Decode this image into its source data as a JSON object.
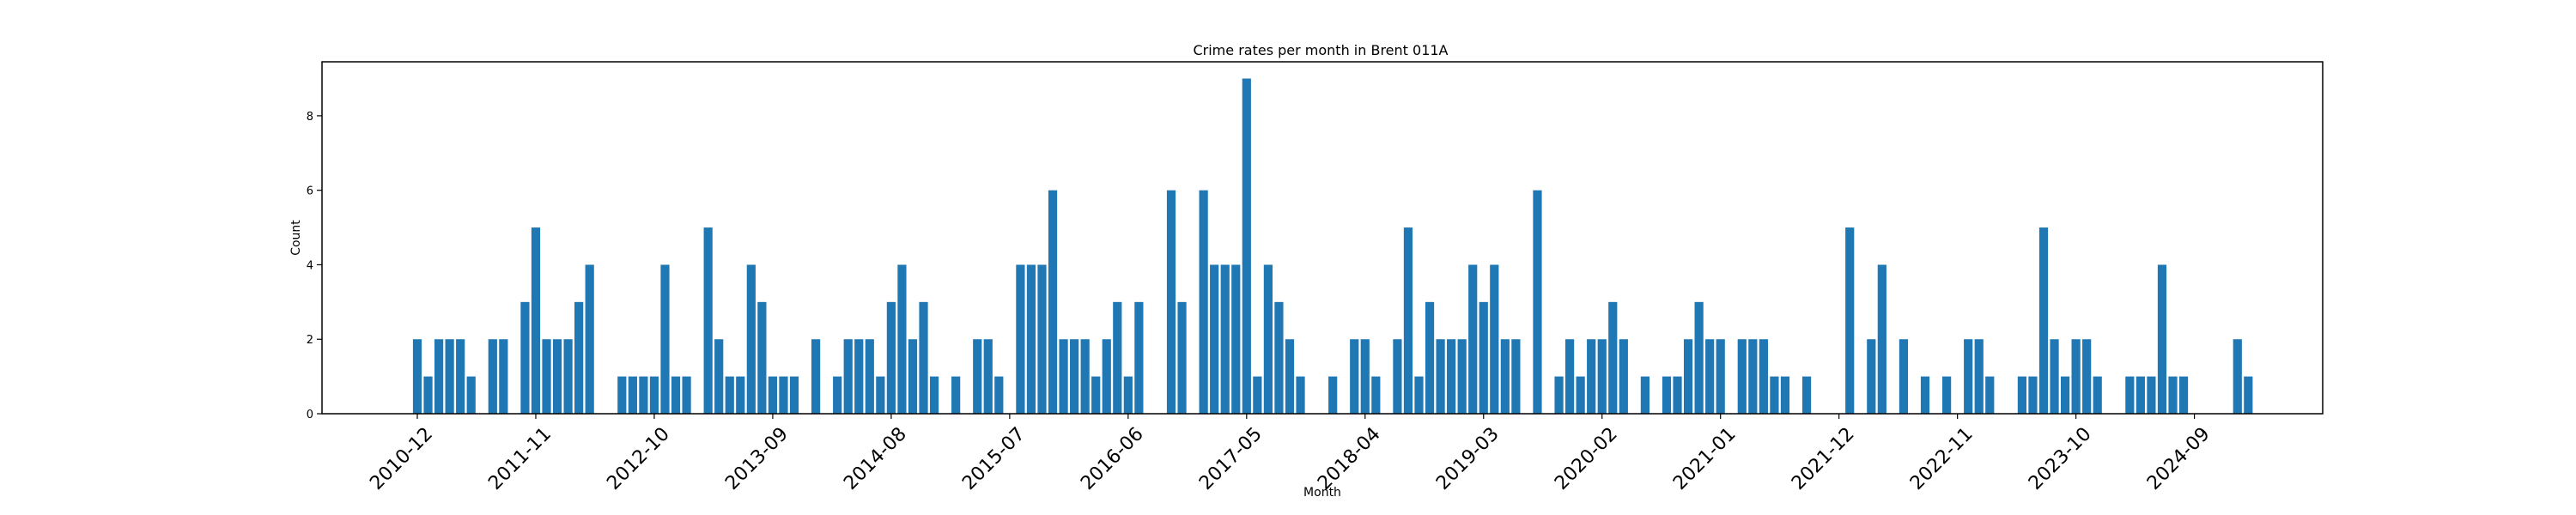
{
  "chart_data": {
    "type": "bar",
    "title": "Crime rates per month in Brent 011A",
    "xlabel": "Month",
    "ylabel": "Count",
    "ylim": [
      0,
      9.45
    ],
    "yticks": [
      0,
      2,
      4,
      6,
      8
    ],
    "ytick_labels": [
      "0",
      "2",
      "4",
      "6",
      "8"
    ],
    "grid": false,
    "bar_color": "#1f77b4",
    "x_start": "2010-12",
    "x_tick_labels": [
      "2010-12",
      "2011-11",
      "2012-10",
      "2013-09",
      "2014-08",
      "2015-07",
      "2016-06",
      "2017-05",
      "2018-04",
      "2019-03",
      "2020-02",
      "2021-01",
      "2021-12",
      "2022-11",
      "2023-10",
      "2024-09"
    ],
    "values": [
      2,
      1,
      2,
      2,
      2,
      1,
      0,
      2,
      2,
      0,
      3,
      5,
      2,
      2,
      2,
      3,
      4,
      0,
      0,
      1,
      1,
      1,
      1,
      4,
      1,
      1,
      0,
      5,
      2,
      1,
      1,
      4,
      3,
      1,
      1,
      1,
      0,
      2,
      0,
      1,
      2,
      2,
      2,
      1,
      3,
      4,
      2,
      3,
      1,
      0,
      1,
      0,
      2,
      2,
      1,
      0,
      4,
      4,
      4,
      6,
      2,
      2,
      2,
      1,
      2,
      3,
      1,
      3,
      0,
      0,
      6,
      3,
      0,
      6,
      4,
      4,
      4,
      9,
      1,
      4,
      3,
      2,
      1,
      0,
      0,
      1,
      0,
      2,
      2,
      1,
      0,
      2,
      5,
      1,
      3,
      2,
      2,
      2,
      4,
      3,
      4,
      2,
      2,
      0,
      6,
      0,
      1,
      2,
      1,
      2,
      2,
      3,
      2,
      0,
      1,
      0,
      1,
      1,
      2,
      3,
      2,
      2,
      0,
      2,
      2,
      2,
      1,
      1,
      0,
      1,
      0,
      0,
      0,
      5,
      0,
      2,
      4,
      0,
      2,
      0,
      1,
      0,
      1,
      0,
      2,
      2,
      1,
      0,
      0,
      1,
      1,
      5,
      2,
      1,
      2,
      2,
      1,
      0,
      0,
      1,
      1,
      1,
      4,
      1,
      1,
      0,
      0,
      0,
      0,
      2,
      1
    ]
  }
}
